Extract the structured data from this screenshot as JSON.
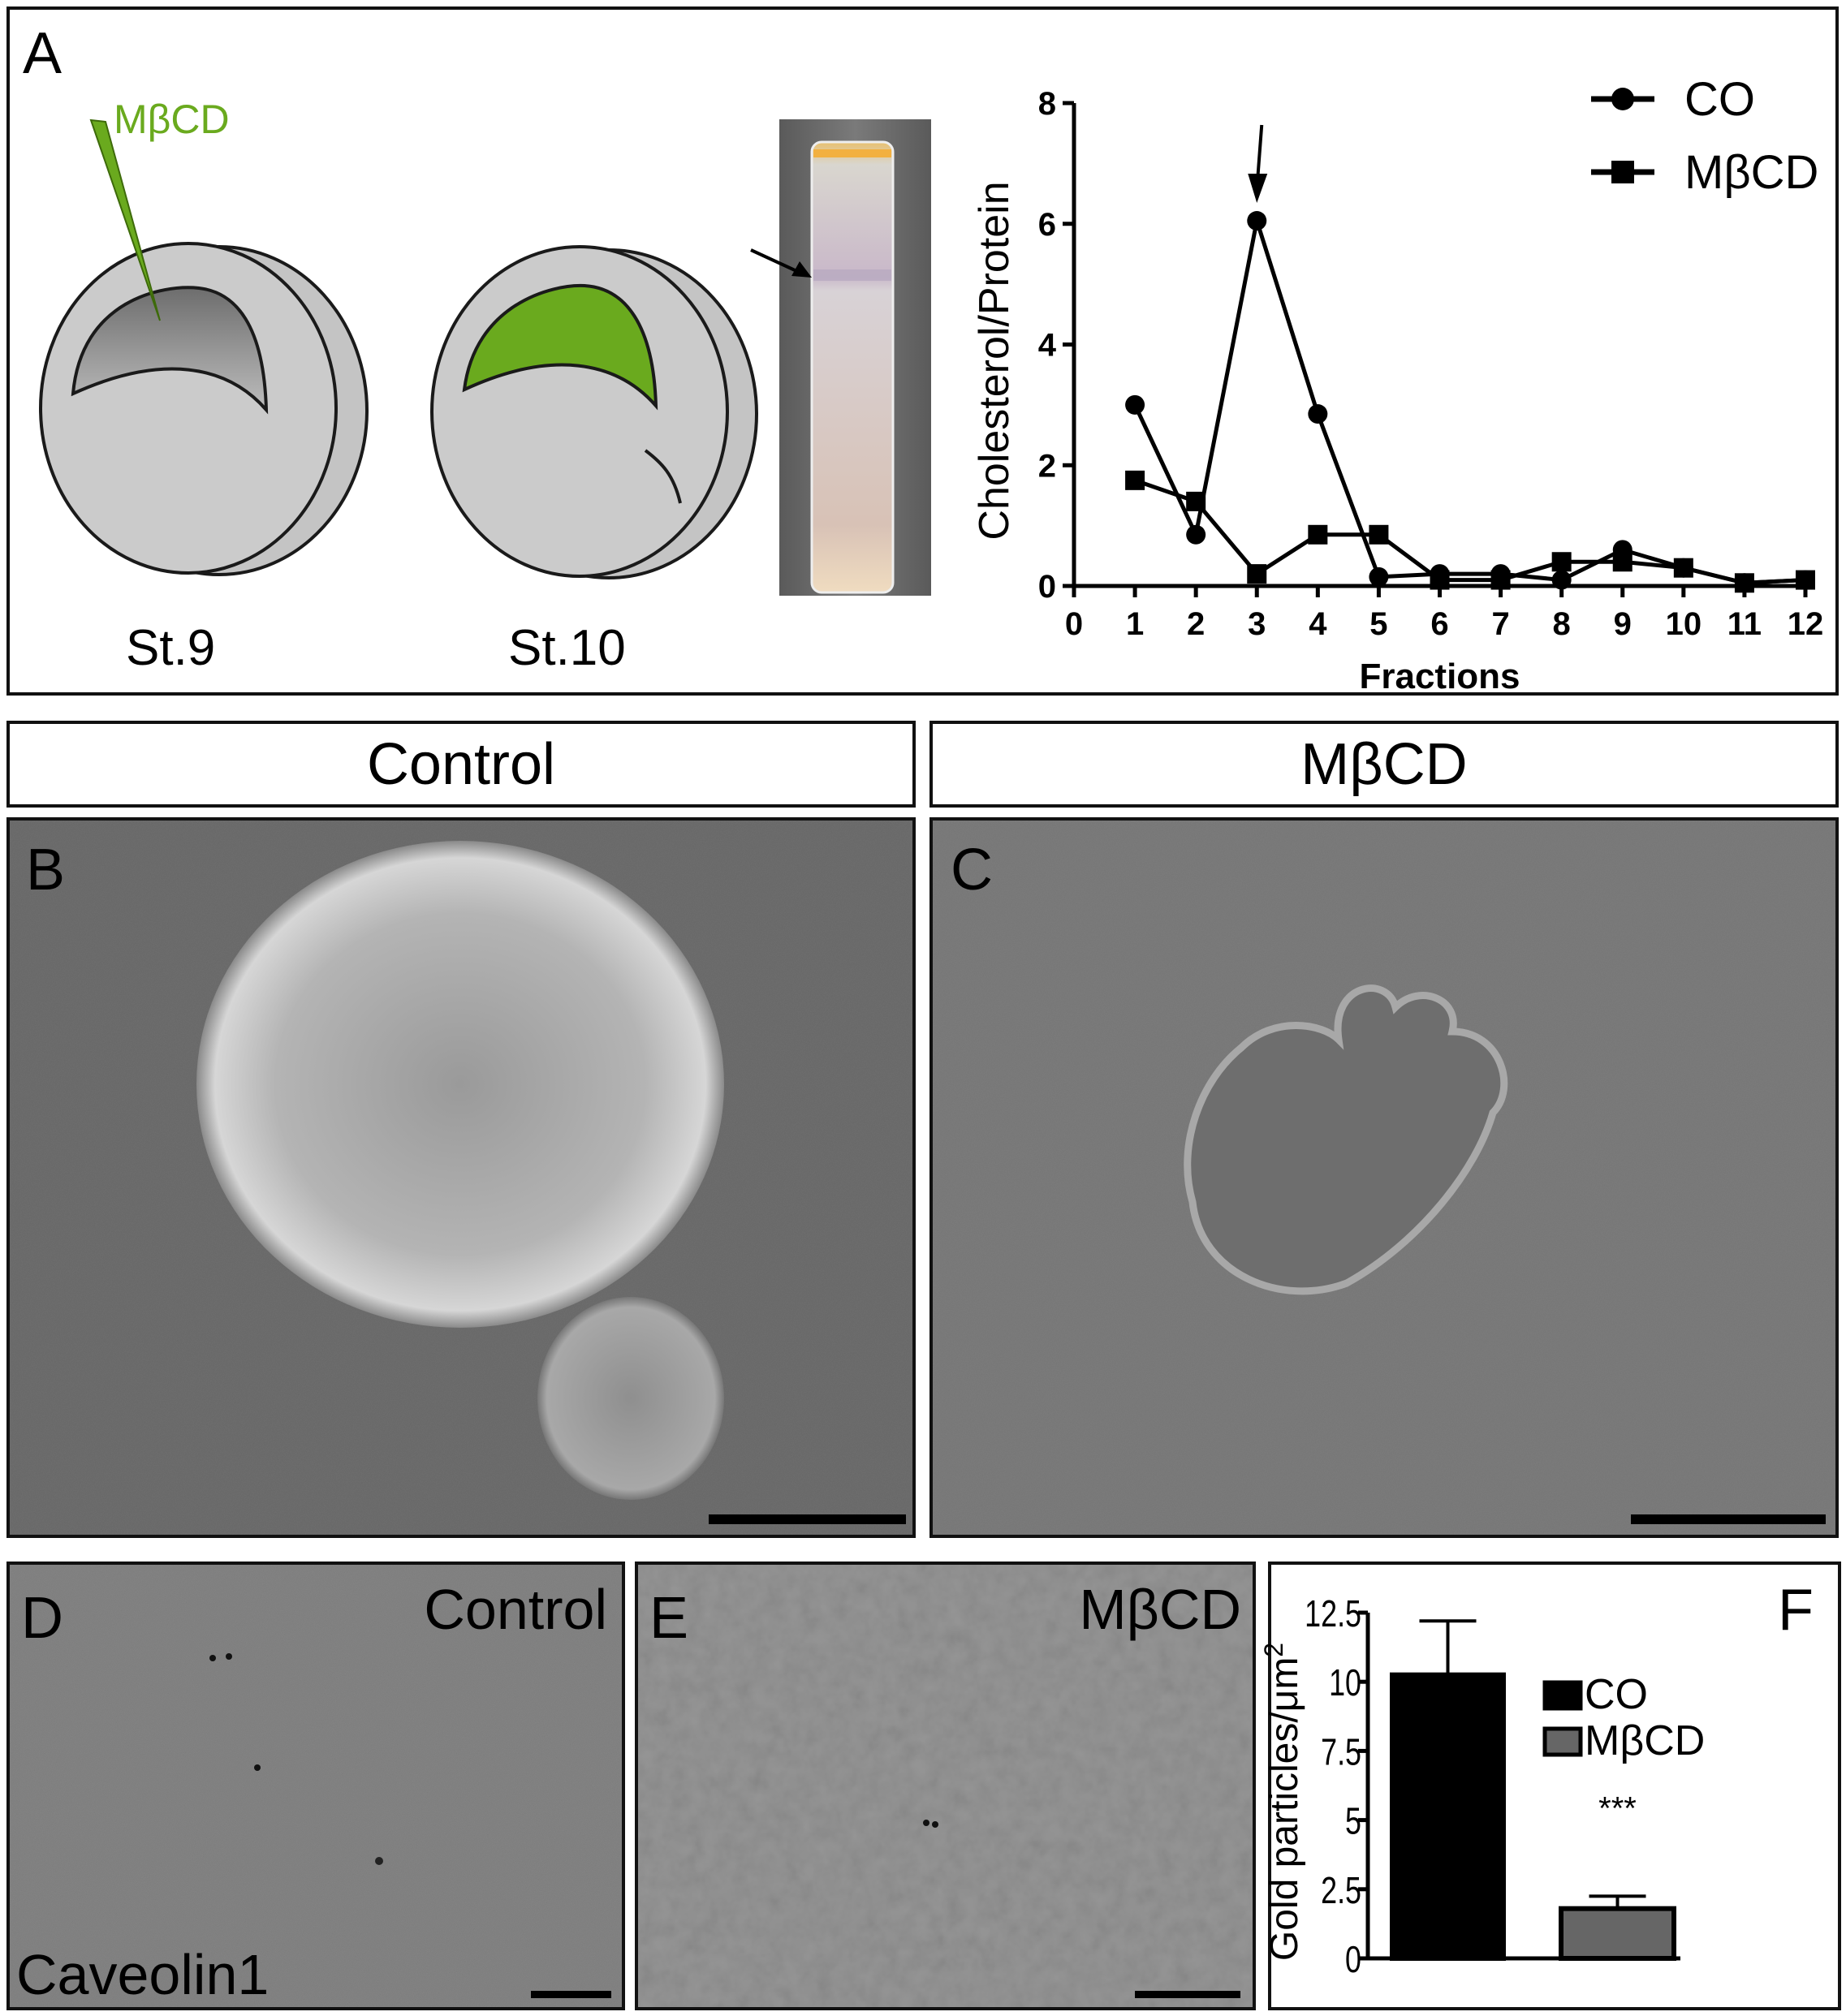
{
  "panel_a": {
    "letter": "A",
    "drug_label": "MβCD",
    "stage_left": "St.9",
    "stage_right": "St.10",
    "colors": {
      "drug_green": "#6aaa1e",
      "embryo_gray": "#c8c8c8"
    }
  },
  "headers": {
    "control": "Control",
    "treated": "MβCD"
  },
  "panel_b": {
    "letter": "B"
  },
  "panel_c": {
    "letter": "C"
  },
  "panel_d": {
    "letter": "D",
    "condition": "Control",
    "marker": "Caveolin1"
  },
  "panel_e": {
    "letter": "E",
    "condition": "MβCD"
  },
  "panel_f": {
    "letter": "F"
  },
  "chart_data": [
    {
      "type": "line",
      "xlabel": "Fractions",
      "ylabel": "Cholesterol/Protein",
      "xlim": [
        0,
        12
      ],
      "ylim": [
        0,
        8
      ],
      "x_ticks": [
        0,
        1,
        2,
        3,
        4,
        5,
        6,
        7,
        8,
        9,
        10,
        11,
        12
      ],
      "y_ticks": [
        0,
        2,
        4,
        6,
        8
      ],
      "legend_position": "top-right",
      "annotation": "arrow at fraction 3",
      "x": [
        1,
        2,
        3,
        4,
        5,
        6,
        7,
        8,
        9,
        10,
        11,
        12
      ],
      "series": [
        {
          "name": "CO",
          "marker": "circle",
          "values": [
            3.0,
            0.85,
            6.05,
            2.85,
            0.15,
            0.2,
            0.2,
            0.1,
            0.6,
            0.3,
            0.05,
            0.1
          ]
        },
        {
          "name": "MβCD",
          "marker": "square",
          "values": [
            1.75,
            1.4,
            0.2,
            0.85,
            0.85,
            0.1,
            0.1,
            0.4,
            0.4,
            0.3,
            0.05,
            0.1
          ]
        }
      ]
    },
    {
      "type": "bar",
      "ylabel": "Gold particles/μm",
      "ylabel_superscript": "2",
      "ylim": [
        0,
        12.5
      ],
      "y_ticks": [
        "0",
        "2.5",
        "5",
        "7.5",
        "10",
        "12.5"
      ],
      "legend_position": "right",
      "categories": [
        "CO",
        "MβCD"
      ],
      "values": [
        10.25,
        1.8
      ],
      "error_upper": [
        12.2,
        2.25
      ],
      "colors": [
        "#000000",
        "#666666"
      ],
      "significance": [
        "",
        "***"
      ]
    }
  ]
}
